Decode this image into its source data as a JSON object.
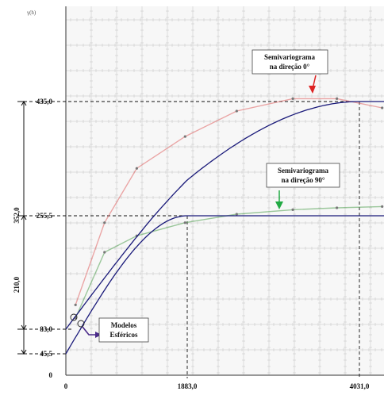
{
  "chart_data": {
    "type": "line",
    "ylabel": "γ(h)",
    "x_ticks": [
      {
        "value": 0,
        "label": "0"
      },
      {
        "value": 1883.0,
        "label": "1883,0"
      },
      {
        "value": 4031.0,
        "label": "4031,0"
      }
    ],
    "y_ticks": [
      {
        "value": 0,
        "label": "0"
      },
      {
        "value": 45.5,
        "label": "45,5"
      },
      {
        "value": 83.0,
        "label": "83,0"
      },
      {
        "value": 255.5,
        "label": "255,5"
      },
      {
        "value": 435.0,
        "label": "435,0"
      }
    ],
    "xlim": [
      0,
      4300
    ],
    "ylim": [
      0,
      600
    ],
    "grid": true,
    "series": [
      {
        "name": "Semivariograma na direção 0°",
        "model": "spherical",
        "nugget": 83.0,
        "sill": 435.0,
        "range": 4031.0,
        "experimental_points": [
          [
            150,
            120
          ],
          [
            600,
            245
          ],
          [
            1100,
            330
          ],
          [
            1850,
            380
          ],
          [
            2500,
            420
          ],
          [
            3200,
            440
          ],
          [
            3750,
            440
          ],
          [
            4280,
            425
          ]
        ],
        "line_color": "#1a1a7a",
        "point_color": "#e06060"
      },
      {
        "name": "Semivariograma na direção 90°",
        "model": "spherical",
        "nugget": 45.5,
        "sill": 255.5,
        "range": 1883.0,
        "experimental_points": [
          [
            150,
            100
          ],
          [
            600,
            200
          ],
          [
            1100,
            225
          ],
          [
            1850,
            245
          ],
          [
            2500,
            258
          ],
          [
            3200,
            265
          ],
          [
            3750,
            268
          ],
          [
            4280,
            270
          ]
        ],
        "line_color": "#1a1a7a",
        "point_color": "#50a050"
      }
    ],
    "brackets": [
      {
        "label": "352,0",
        "from": 83.0,
        "to": 435.0
      },
      {
        "label": "210,0",
        "from": 45.5,
        "to": 255.5
      }
    ],
    "annotations": [
      {
        "line1": "Semivariograma",
        "line2": "na direção 0°",
        "arrow_color": "#dd2222"
      },
      {
        "line1": "Semivariograma",
        "line2": "na direção 90°",
        "arrow_color": "#22aa44"
      },
      {
        "line1": "Modelos",
        "line2": "Esféricos",
        "arrow_color": "#4a2a8a"
      }
    ]
  }
}
